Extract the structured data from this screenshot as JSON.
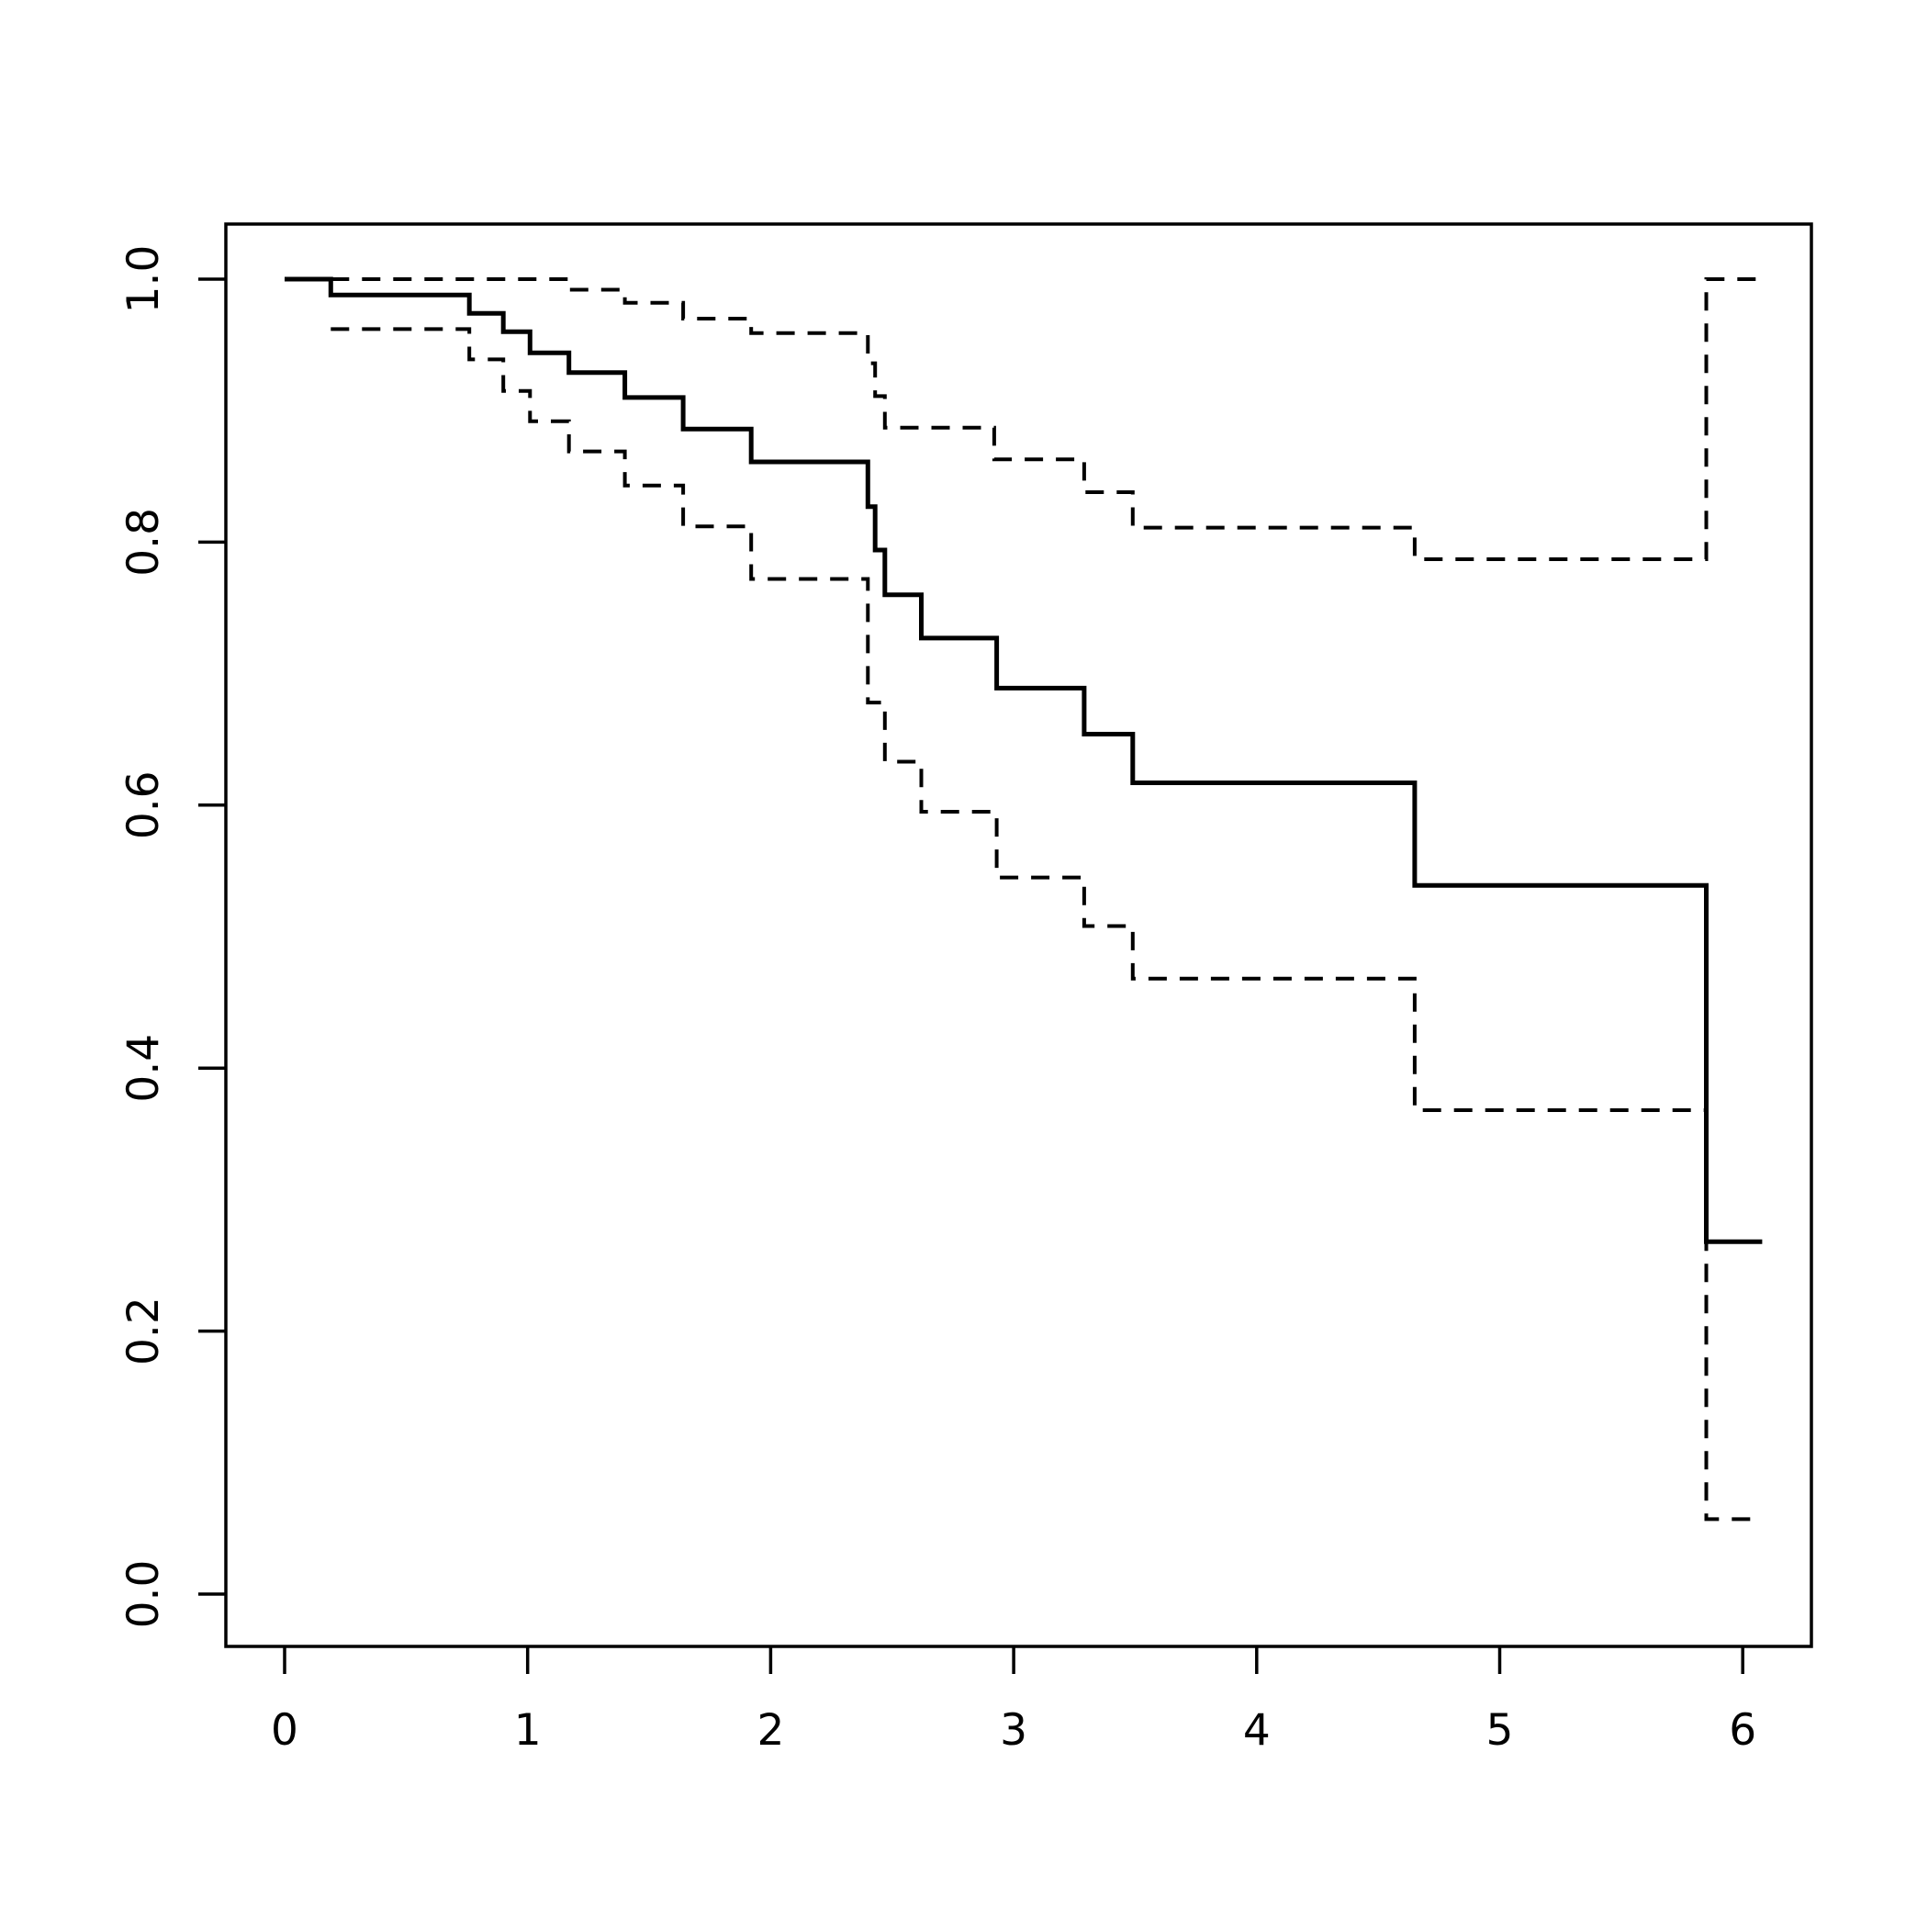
{
  "figure": {
    "background_color": "#ffffff",
    "foreground_color": "#000000",
    "title": "",
    "description": "Kaplan-Meier survival curve with dashed 95% confidence bands, R base graphics style, no title, no axis labels, no legend"
  },
  "chart_data": {
    "type": "line",
    "subtype": "kaplan-meier-step",
    "title": "",
    "xlabel": "",
    "ylabel": "",
    "grid": false,
    "legend": false,
    "frame": true,
    "xlim": [
      0,
      6.08
    ],
    "ylim": [
      0,
      1.0
    ],
    "x_ticks": [
      0,
      1,
      2,
      3,
      4,
      5,
      6
    ],
    "y_ticks": [
      "0.0",
      "0.2",
      "0.4",
      "0.6",
      "0.8",
      "1.0"
    ],
    "series": [
      {
        "name": "survival-estimate",
        "style": "solid",
        "color": "#000000",
        "t_end": 6.08,
        "points": [
          [
            0.0,
            1.0
          ],
          [
            0.19,
            0.988
          ],
          [
            0.76,
            0.974
          ],
          [
            0.9,
            0.96
          ],
          [
            1.01,
            0.944
          ],
          [
            1.17,
            0.929
          ],
          [
            1.4,
            0.91
          ],
          [
            1.64,
            0.886
          ],
          [
            1.92,
            0.861
          ],
          [
            2.4,
            0.827
          ],
          [
            2.43,
            0.794
          ],
          [
            2.47,
            0.76
          ],
          [
            2.62,
            0.727
          ],
          [
            2.93,
            0.689
          ],
          [
            3.29,
            0.654
          ],
          [
            3.49,
            0.617
          ],
          [
            4.65,
            0.539
          ],
          [
            5.85,
            0.268
          ]
        ]
      },
      {
        "name": "upper-confidence-band",
        "style": "dashed",
        "color": "#000000",
        "t_end": 6.08,
        "points": [
          [
            0.19,
            1.0
          ],
          [
            1.17,
            0.992
          ],
          [
            1.4,
            0.982
          ],
          [
            1.64,
            0.97
          ],
          [
            1.92,
            0.959
          ],
          [
            2.4,
            0.936
          ],
          [
            2.43,
            0.911
          ],
          [
            2.47,
            0.887
          ],
          [
            2.92,
            0.863
          ],
          [
            3.29,
            0.838
          ],
          [
            3.49,
            0.811
          ],
          [
            4.65,
            0.787
          ],
          [
            5.85,
            1.0
          ]
        ]
      },
      {
        "name": "lower-confidence-band",
        "style": "dashed",
        "color": "#000000",
        "t_end": 6.08,
        "points": [
          [
            0.19,
            0.962
          ],
          [
            0.76,
            0.939
          ],
          [
            0.9,
            0.915
          ],
          [
            1.01,
            0.892
          ],
          [
            1.17,
            0.869
          ],
          [
            1.4,
            0.843
          ],
          [
            1.64,
            0.812
          ],
          [
            1.92,
            0.772
          ],
          [
            2.4,
            0.678
          ],
          [
            2.47,
            0.633
          ],
          [
            2.62,
            0.595
          ],
          [
            2.93,
            0.545
          ],
          [
            3.29,
            0.508
          ],
          [
            3.49,
            0.468
          ],
          [
            4.65,
            0.368
          ],
          [
            5.85,
            0.057
          ]
        ]
      }
    ]
  }
}
